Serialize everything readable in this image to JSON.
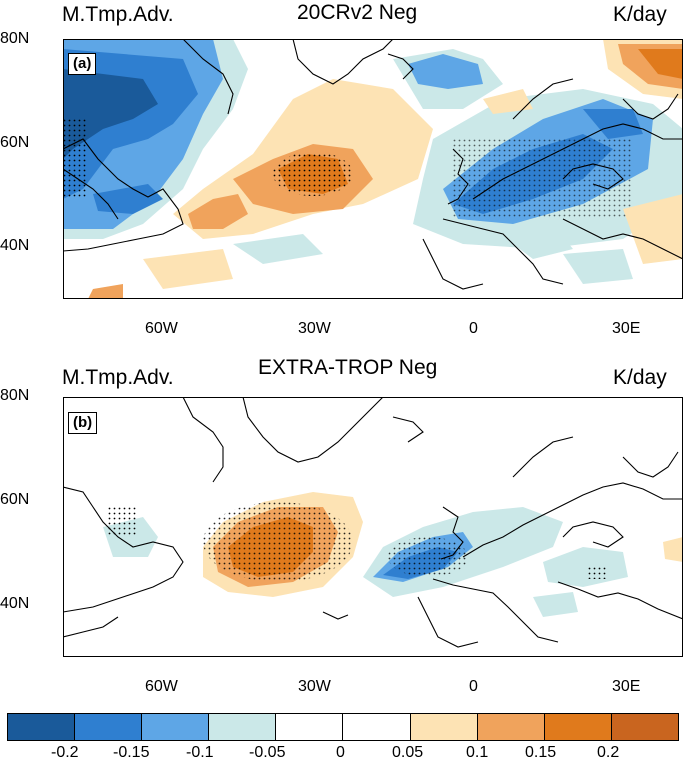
{
  "panels": [
    {
      "label": "(a)",
      "left_title": "M.Tmp.Adv.",
      "center_title": "20CRv2 Neg",
      "right_title": "K/day",
      "lat_ticks": [
        "80N",
        "60N",
        "40N"
      ],
      "lon_ticks": [
        "60W",
        "30W",
        "0",
        "30E"
      ]
    },
    {
      "label": "(b)",
      "left_title": "M.Tmp.Adv.",
      "center_title": "EXTRA-TROP Neg",
      "right_title": "K/day",
      "lat_ticks": [
        "80N",
        "60N",
        "40N"
      ],
      "lon_ticks": [
        "60W",
        "30W",
        "0",
        "30E"
      ]
    }
  ],
  "colorbar": {
    "labels": [
      "-0.2",
      "-0.15",
      "-0.1",
      "-0.05",
      "0",
      "0.05",
      "0.1",
      "0.15",
      "0.2"
    ],
    "colors": [
      "#1a5a9a",
      "#2f7fd0",
      "#5ea6e6",
      "#cbe8e8",
      "#ffffff",
      "#ffffff",
      "#fde3b4",
      "#f0a35c",
      "#e07a1c",
      "#c9651f"
    ]
  },
  "palette": {
    "neg3": "#1a5a9a",
    "neg2": "#2f7fd0",
    "neg1": "#5ea6e6",
    "neg0": "#cbe8e8",
    "pos0": "#fde3b4",
    "pos1": "#f0a35c",
    "pos2": "#e07a1c",
    "pos3": "#c9651f"
  }
}
